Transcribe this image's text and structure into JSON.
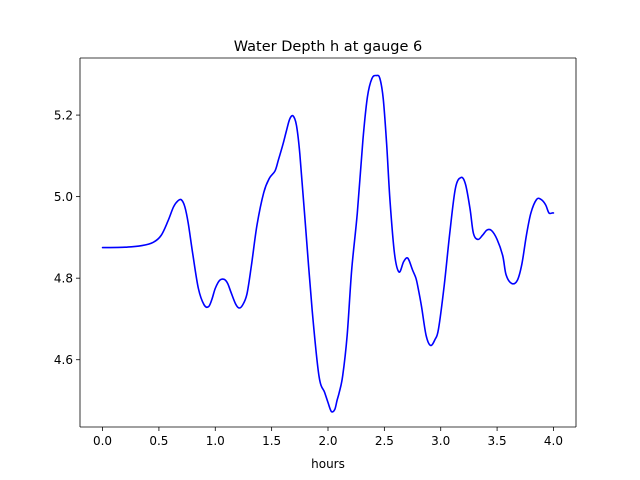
{
  "chart_data": {
    "type": "line",
    "title": "Water Depth h at gauge 6",
    "xlabel": "hours",
    "ylabel": "",
    "xlim": [
      -0.2,
      4.2
    ],
    "ylim": [
      4.435,
      5.34
    ],
    "xticks": [
      0.0,
      0.5,
      1.0,
      1.5,
      2.0,
      2.5,
      3.0,
      3.5,
      4.0
    ],
    "xtick_labels": [
      "0.0",
      "0.5",
      "1.0",
      "1.5",
      "2.0",
      "2.5",
      "3.0",
      "3.5",
      "4.0"
    ],
    "yticks": [
      4.6,
      4.8,
      5.0,
      5.2
    ],
    "ytick_labels": [
      "4.6",
      "4.8",
      "5.0",
      "5.2"
    ],
    "grid": false,
    "series": [
      {
        "name": "",
        "color": "#0000ff",
        "x": [
          0.0,
          0.2,
          0.35,
          0.45,
          0.52,
          0.58,
          0.63,
          0.67,
          0.7,
          0.73,
          0.76,
          0.8,
          0.85,
          0.9,
          0.94,
          0.97,
          1.0,
          1.04,
          1.08,
          1.11,
          1.14,
          1.18,
          1.21,
          1.24,
          1.28,
          1.32,
          1.37,
          1.43,
          1.48,
          1.53,
          1.56,
          1.6,
          1.63,
          1.66,
          1.69,
          1.72,
          1.75,
          1.8,
          1.86,
          1.92,
          1.97,
          2.0,
          2.03,
          2.06,
          2.08,
          2.1,
          2.13,
          2.17,
          2.21,
          2.26,
          2.31,
          2.35,
          2.39,
          2.43,
          2.46,
          2.49,
          2.52,
          2.55,
          2.59,
          2.63,
          2.67,
          2.7,
          2.72,
          2.75,
          2.78,
          2.8,
          2.83,
          2.87,
          2.91,
          2.95,
          2.98,
          3.03,
          3.08,
          3.13,
          3.18,
          3.22,
          3.26,
          3.29,
          3.33,
          3.37,
          3.41,
          3.45,
          3.5,
          3.55,
          3.58,
          3.63,
          3.68,
          3.72,
          3.76,
          3.8,
          3.85,
          3.89,
          3.93,
          3.96,
          3.99,
          4.0
        ],
        "y": [
          4.875,
          4.876,
          4.88,
          4.888,
          4.905,
          4.94,
          4.975,
          4.99,
          4.992,
          4.975,
          4.935,
          4.86,
          4.775,
          4.735,
          4.73,
          4.748,
          4.775,
          4.795,
          4.797,
          4.787,
          4.765,
          4.737,
          4.727,
          4.733,
          4.76,
          4.83,
          4.93,
          5.01,
          5.045,
          5.063,
          5.09,
          5.128,
          5.16,
          5.19,
          5.198,
          5.175,
          5.105,
          4.93,
          4.72,
          4.56,
          4.52,
          4.495,
          4.473,
          4.478,
          4.5,
          4.52,
          4.56,
          4.66,
          4.82,
          4.96,
          5.14,
          5.245,
          5.29,
          5.297,
          5.29,
          5.24,
          5.13,
          4.99,
          4.86,
          4.815,
          4.84,
          4.85,
          4.843,
          4.82,
          4.8,
          4.775,
          4.73,
          4.66,
          4.635,
          4.65,
          4.675,
          4.78,
          4.91,
          5.02,
          5.047,
          5.03,
          4.97,
          4.91,
          4.895,
          4.905,
          4.918,
          4.917,
          4.895,
          4.855,
          4.808,
          4.787,
          4.795,
          4.835,
          4.905,
          4.96,
          4.993,
          4.993,
          4.98,
          4.96,
          4.96,
          4.96
        ]
      }
    ]
  }
}
